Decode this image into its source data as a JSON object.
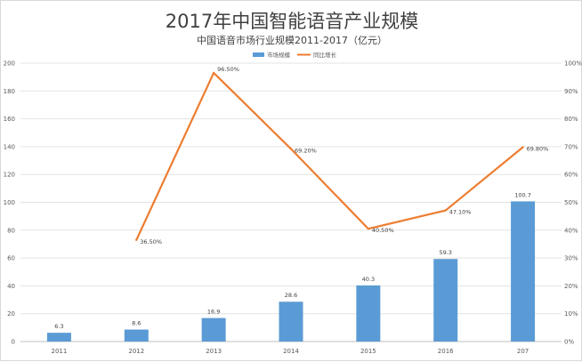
{
  "chart_data": {
    "type": "bar",
    "title": "2017年中国智能语音产业规模",
    "subtitle": "中国语音市场行业规模2011-2017（亿元）",
    "categories": [
      "2011",
      "2012",
      "2013",
      "2014",
      "2015",
      "2016",
      "207"
    ],
    "series": [
      {
        "name": "市场规模",
        "type": "bar",
        "axis": "left",
        "color": "#5b9bd5",
        "values": [
          6.3,
          8.6,
          16.9,
          28.6,
          40.3,
          59.3,
          100.7
        ],
        "labels": [
          "6.3",
          "8.6",
          "16.9",
          "28.6",
          "40.3",
          "59.3",
          "100.7"
        ]
      },
      {
        "name": "同比增长",
        "type": "line",
        "axis": "right",
        "color": "#ed7d31",
        "values": [
          null,
          36.5,
          96.5,
          69.2,
          40.5,
          47.1,
          69.8
        ],
        "labels": [
          "",
          "36.50%",
          "96.50%",
          "69.20%",
          "40.50%",
          "47.10%",
          "69.80%"
        ]
      }
    ],
    "y_left": {
      "ylim": [
        0,
        200
      ],
      "ticks": [
        "0",
        "20",
        "40",
        "60",
        "80",
        "100",
        "120",
        "140",
        "160",
        "180",
        "200"
      ]
    },
    "y_right": {
      "ylim": [
        0,
        100
      ],
      "ticks": [
        "0%",
        "10%",
        "20%",
        "30%",
        "40%",
        "50%",
        "60%",
        "70%",
        "80%",
        "90%",
        "100%"
      ]
    },
    "grid": true,
    "legend": "top-center"
  }
}
